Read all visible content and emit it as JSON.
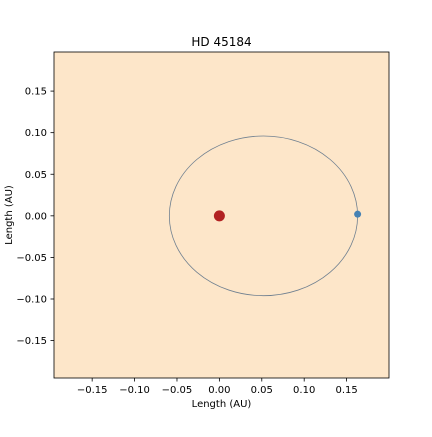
{
  "chart_data": {
    "type": "scatter",
    "title": "HD 45184",
    "xlabel": "Length (AU)",
    "ylabel": "Length (AU)",
    "xlim": [
      -0.195,
      0.2
    ],
    "ylim": [
      -0.195,
      0.197
    ],
    "xticks": [
      -0.15,
      -0.1,
      -0.05,
      0.0,
      0.05,
      0.1,
      0.15
    ],
    "xtick_labels": [
      "−0.15",
      "−0.10",
      "−0.05",
      "0.00",
      "0.05",
      "0.10",
      "0.15"
    ],
    "yticks": [
      0.15,
      0.1,
      0.05,
      0.0,
      -0.05,
      -0.1,
      -0.15
    ],
    "ytick_labels": [
      "0.15",
      "0.10",
      "0.05",
      "0.00",
      "−0.05",
      "−0.10",
      "−0.15"
    ],
    "grid": false,
    "background_color": "#fde6c9",
    "star": {
      "x": 0.0,
      "y": 0.0,
      "color": "#b22222"
    },
    "orbit": {
      "center_x": 0.052,
      "center_y": 0.0,
      "semi_major": 0.111,
      "semi_minor": 0.096,
      "color": "#708090"
    },
    "planet": {
      "x": 0.163,
      "y": 0.002,
      "color": "#4682b4"
    }
  }
}
